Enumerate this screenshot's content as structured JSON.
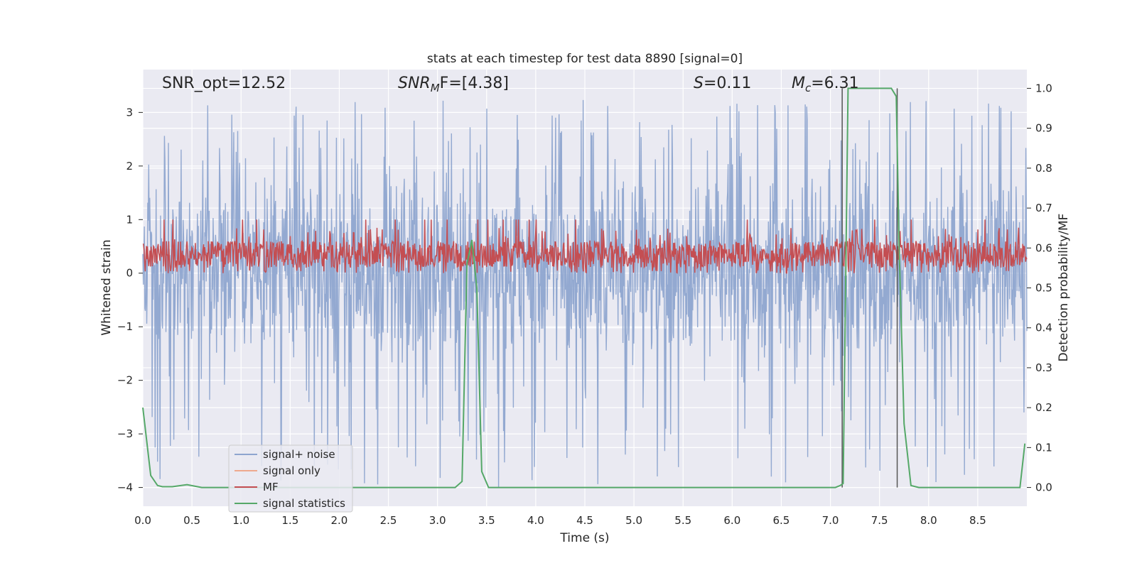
{
  "chart_data": {
    "type": "line",
    "title": "stats at each timestep for test data 8890 [signal=0]",
    "xlabel": "Time (s)",
    "ylabel_left": "Whitened strain",
    "ylabel_right": "Detection probability/MF",
    "xlim": [
      0.0,
      9.0
    ],
    "ylim_left": [
      -4.35,
      3.8
    ],
    "ylim_right": [
      -0.047,
      1.047
    ],
    "xticks": [
      "0.0",
      "0.5",
      "1.0",
      "1.5",
      "2.0",
      "2.5",
      "3.0",
      "3.5",
      "4.0",
      "4.5",
      "5.0",
      "5.5",
      "6.0",
      "6.5",
      "7.0",
      "7.5",
      "8.0",
      "8.5"
    ],
    "yticks_left": [
      "−4",
      "−3",
      "−2",
      "−1",
      "0",
      "1",
      "2",
      "3"
    ],
    "yticks_right": [
      "0.0",
      "0.1",
      "0.2",
      "0.3",
      "0.4",
      "0.5",
      "0.6",
      "0.7",
      "0.8",
      "0.9",
      "1.0"
    ],
    "grid": true,
    "legend_position": "lower-left",
    "annotations": {
      "snr_opt": "SNR_opt=12.52",
      "snr_mf": "SNR",
      "snr_mf_sub": "M",
      "snr_mf_tail": "F=[4.38]",
      "s": "S",
      "s_tail": "=0.11",
      "mc": "M",
      "mc_sub": "c",
      "mc_tail": "=6.31"
    },
    "vertical_lines_x": [
      7.12,
      7.68
    ],
    "series": [
      {
        "name": "signal+ noise",
        "color": "#8ea5cf",
        "axis": "left",
        "kind": "noise",
        "amplitude_core": [
          -1.0,
          1.2
        ],
        "amplitude_extreme": [
          -4.0,
          3.25
        ]
      },
      {
        "name": "signal only",
        "color": "#eea98e",
        "axis": "left",
        "x": [],
        "y": []
      },
      {
        "name": "MF",
        "color": "#c44e52",
        "axis": "left",
        "kind": "noise",
        "band": [
          0.0,
          0.85
        ],
        "peak": 1.0
      },
      {
        "name": "signal statistics",
        "color": "#55a868",
        "axis": "right",
        "x": [
          0.0,
          0.08,
          0.15,
          0.2,
          0.3,
          0.45,
          0.6,
          0.7,
          3.1,
          3.18,
          3.25,
          3.3,
          3.35,
          3.4,
          3.45,
          3.52,
          3.6,
          7.05,
          7.1,
          7.13,
          7.18,
          7.25,
          7.62,
          7.67,
          7.7,
          7.75,
          7.82,
          7.9,
          8.93,
          8.98
        ],
        "y": [
          0.2,
          0.03,
          0.005,
          0.002,
          0.002,
          0.007,
          0.0,
          0.0,
          0.0,
          0.0,
          0.015,
          0.56,
          0.62,
          0.5,
          0.04,
          0.0,
          0.0,
          0.0,
          0.005,
          0.01,
          1.0,
          1.0,
          1.0,
          0.98,
          0.6,
          0.16,
          0.005,
          0.0,
          0.0,
          0.11
        ]
      }
    ]
  },
  "colors": {
    "plot_background": "#eaeaf2",
    "grid": "#ffffff",
    "noise": "#8ea5cf",
    "signal_only": "#eea98e",
    "mf": "#c44e52",
    "signal_statistics": "#55a868",
    "vertical_line": "#555555"
  }
}
